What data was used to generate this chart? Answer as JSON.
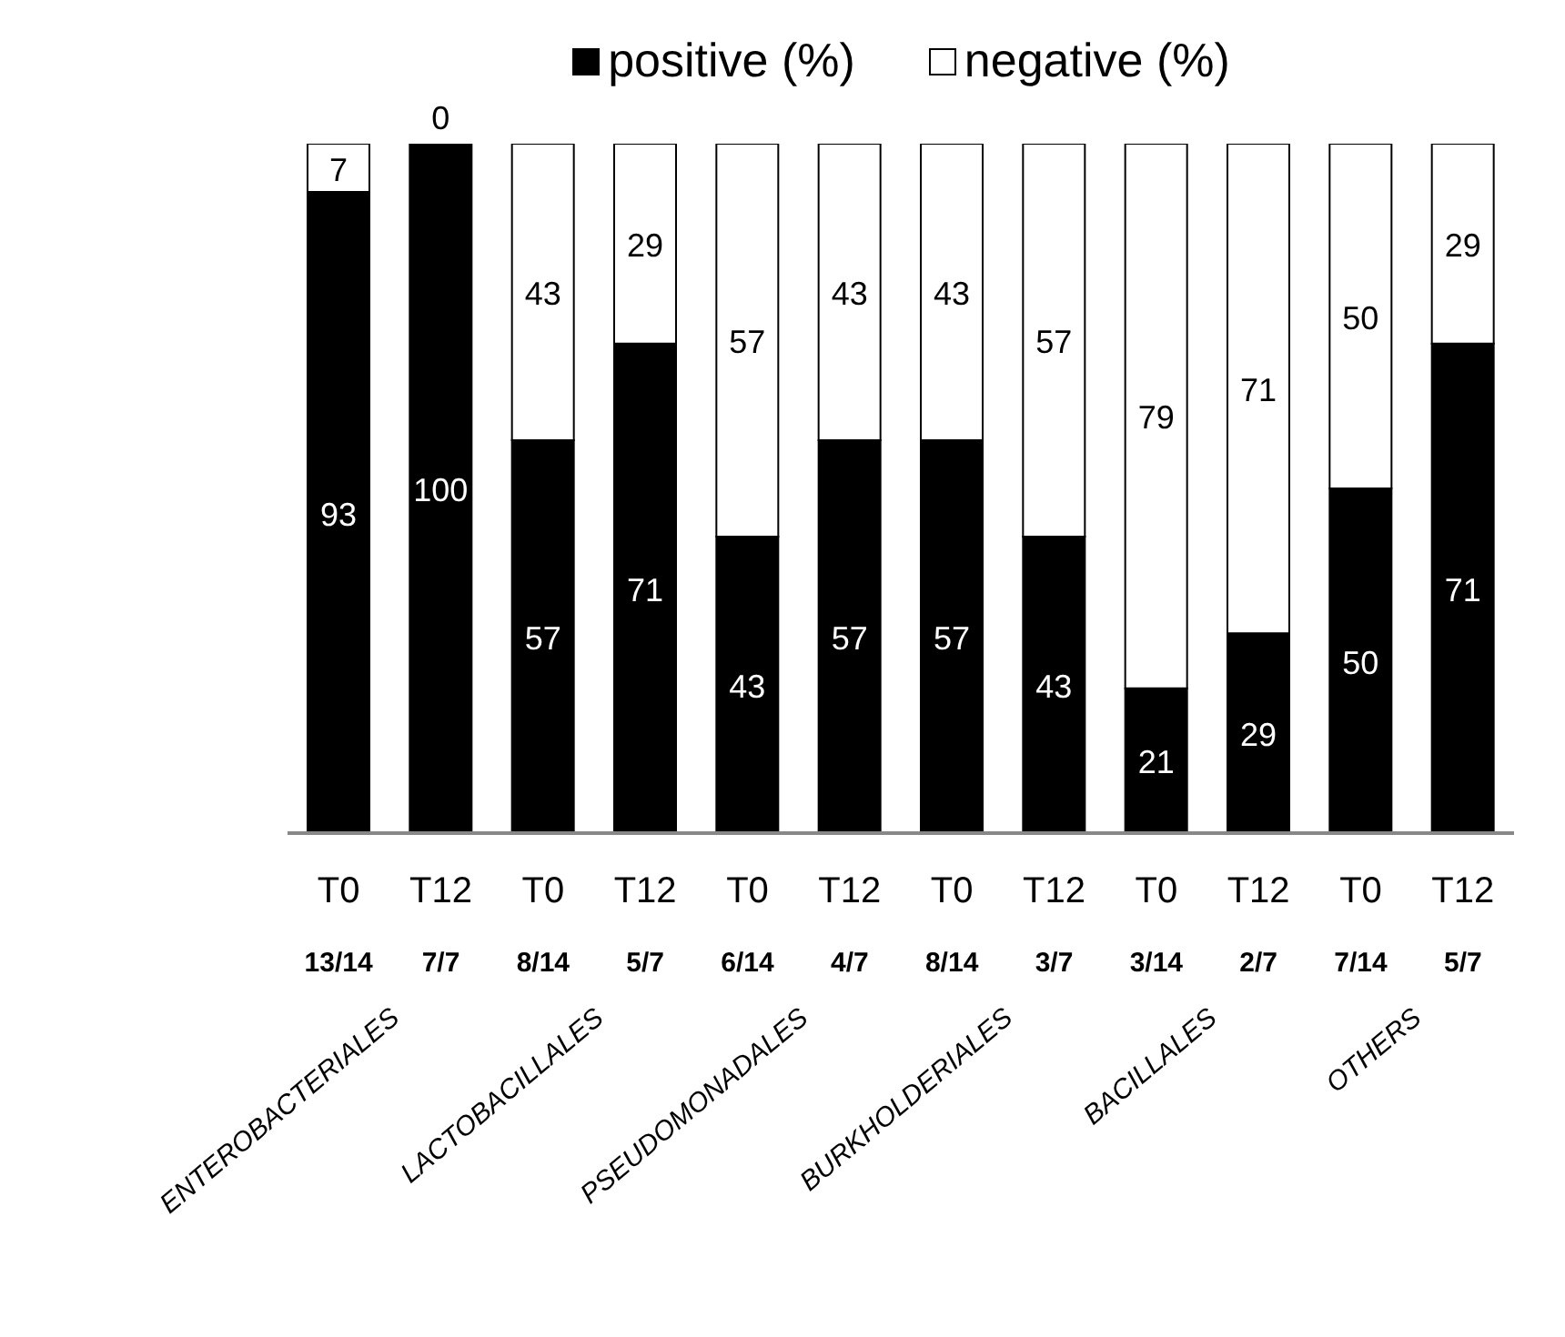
{
  "chart_data": {
    "type": "bar",
    "stacked": true,
    "categories": [
      "T0",
      "T12",
      "T0",
      "T12",
      "T0",
      "T12",
      "T0",
      "T12",
      "T0",
      "T12",
      "T0",
      "T12"
    ],
    "series": [
      {
        "name": "positive (%)",
        "color": "#000000",
        "values": [
          93,
          100,
          57,
          71,
          43,
          57,
          57,
          43,
          21,
          29,
          50,
          71
        ]
      },
      {
        "name": "negative (%)",
        "color": "#ffffff",
        "values": [
          7,
          0,
          43,
          29,
          57,
          43,
          43,
          57,
          79,
          71,
          50,
          29
        ]
      }
    ],
    "ylim": [
      0,
      100
    ],
    "tick_labels": "x",
    "data_labels": true,
    "legend": "top",
    "annotations": [
      "13/14",
      "7/7",
      "8/14",
      "5/7",
      "6/14",
      "4/7",
      "8/14",
      "3/7",
      "3/14",
      "2/7",
      "7/14",
      "5/7",
      "ENTEROBACTERIALES",
      "LACTOBACILLALES",
      "PSEUDOMONADALES",
      "BURKHOLDERIALES",
      "BACILLALES",
      "OTHERS"
    ]
  }
}
